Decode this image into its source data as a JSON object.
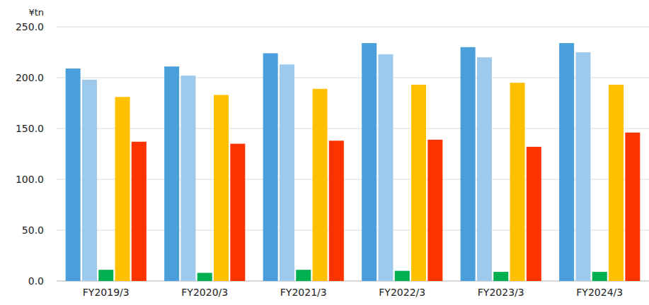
{
  "chart_data": {
    "type": "bar",
    "ylabel": "¥tn",
    "categories": [
      "FY2019/3",
      "FY2020/3",
      "FY2021/3",
      "FY2022/3",
      "FY2023/3",
      "FY2024/3"
    ],
    "series": [
      {
        "color": "#4a9fdb",
        "values": [
          209,
          211,
          224,
          234,
          230,
          234
        ]
      },
      {
        "color": "#9dc9ec",
        "values": [
          198,
          202,
          213,
          223,
          220,
          225
        ]
      },
      {
        "color": "#00b050",
        "values": [
          11,
          8,
          11,
          10,
          9,
          9
        ]
      },
      {
        "color": "#ffc000",
        "values": [
          181,
          183,
          189,
          193,
          195,
          193
        ]
      },
      {
        "color": "#ff3300",
        "values": [
          137,
          135,
          138,
          139,
          132,
          146
        ]
      }
    ],
    "ylim": [
      0,
      250
    ],
    "yticks": [
      {
        "value": 0,
        "label": "0.0"
      },
      {
        "value": 50,
        "label": "50.0"
      },
      {
        "value": 100,
        "label": "100.0"
      },
      {
        "value": 150,
        "label": "150.0"
      },
      {
        "value": 200,
        "label": "200.0"
      },
      {
        "value": 250,
        "label": "250.0"
      }
    ],
    "grid": true
  }
}
